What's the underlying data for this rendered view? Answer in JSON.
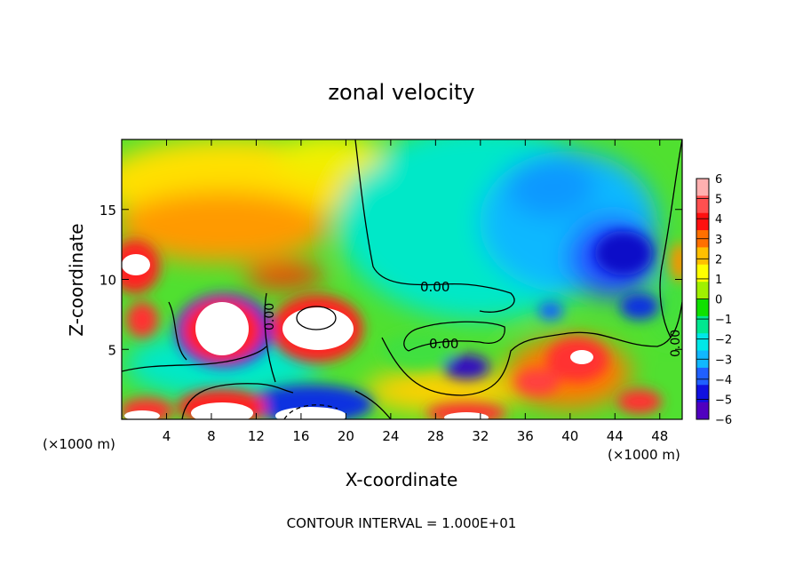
{
  "chart_data": {
    "type": "heatmap",
    "title": "zonal velocity",
    "xlabel": "X-coordinate",
    "ylabel": "Z-coordinate",
    "x_unit_left": "(×1000 m)",
    "x_unit_right": "(×1000 m)",
    "xlim": [
      0,
      50
    ],
    "ylim": [
      0,
      20
    ],
    "x_ticks": [
      4,
      8,
      12,
      16,
      20,
      24,
      28,
      32,
      36,
      40,
      44,
      48
    ],
    "y_ticks": [
      5,
      10,
      15
    ],
    "contour_labels": [
      "0.00",
      "0.00",
      "0.00",
      "0.00"
    ],
    "footer": "CONTOUR INTERVAL = 1.000E+01",
    "colorbar": {
      "labels": [
        "6",
        "5",
        "4",
        "3",
        "2",
        "1",
        "0",
        "−1",
        "−2",
        "−3",
        "−4",
        "−5",
        "−6"
      ],
      "colors": [
        "#ffb0b0",
        "#ff5050",
        "#ff1010",
        "#ff7000",
        "#ffc000",
        "#ffff00",
        "#a0f000",
        "#10e000",
        "#00e890",
        "#00e8e8",
        "#10b8ff",
        "#2060ff",
        "#1010e0",
        "#5000c0"
      ]
    },
    "features": [
      {
        "x": 9.5,
        "z": 7.0,
        "value": 9,
        "kind": "positive"
      },
      {
        "x": 17,
        "z": 7.2,
        "value": 8,
        "kind": "positive"
      },
      {
        "x": 1.5,
        "z": 10.8,
        "value": 7,
        "kind": "positive"
      },
      {
        "x": 44.5,
        "z": 12,
        "value": -5,
        "kind": "negative"
      },
      {
        "x": 31,
        "z": 3.8,
        "value": -6,
        "kind": "negative"
      },
      {
        "x": 40,
        "z": 4,
        "value": 5,
        "kind": "positive"
      },
      {
        "x": 7,
        "z": 15,
        "value": 3,
        "kind": "positive"
      },
      {
        "x": 38,
        "z": 15,
        "value": -2,
        "kind": "negative"
      }
    ]
  }
}
